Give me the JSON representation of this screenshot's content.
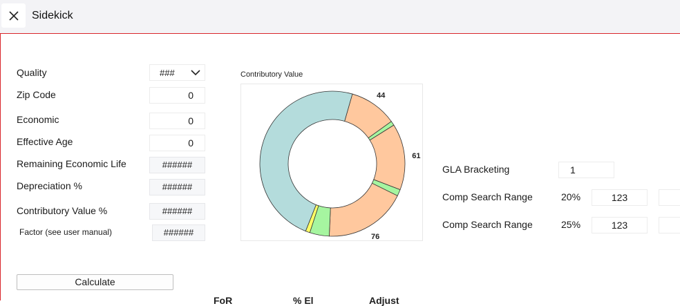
{
  "app": {
    "title": "Sidekick"
  },
  "form": {
    "quality": {
      "label": "Quality",
      "value": "###"
    },
    "zip_code": {
      "label": "Zip Code",
      "value": "0"
    },
    "economic": {
      "label": "Economic",
      "value": "0"
    },
    "effective_age": {
      "label": "Effective Age",
      "value": "0"
    },
    "remaining_life": {
      "label": "Remaining Economic Life",
      "value": "######"
    },
    "depreciation": {
      "label": "Depreciation %",
      "value": "######"
    },
    "contributory_value_pct": {
      "label": "Contributory Value %",
      "value": "######"
    },
    "factor": {
      "label": "Factor (see user manual)",
      "value": "######"
    },
    "calculate_label": "Calculate"
  },
  "chart_data": {
    "type": "pie",
    "title": "Contributory Value",
    "donut": true,
    "slices": [
      {
        "value": 44,
        "color": "#ffc89e",
        "label": "44"
      },
      {
        "value": 4,
        "color": "#a6f5a0",
        "label": ""
      },
      {
        "value": 61,
        "color": "#ffc89e",
        "label": "61"
      },
      {
        "value": 6,
        "color": "#a6f5a0",
        "label": ""
      },
      {
        "value": 76,
        "color": "#ffc89e",
        "label": "76"
      },
      {
        "value": 18,
        "color": "#a6f5a0",
        "label": "18"
      },
      {
        "value": 4,
        "color": "#ffff66",
        "label": "4"
      },
      {
        "value": 200,
        "color": "#b4dcdc",
        "label": ""
      }
    ]
  },
  "gla": {
    "label": "GLA Bracketing",
    "value": "1"
  },
  "comp_ranges": [
    {
      "label": "Comp Search Range",
      "pct": "20%",
      "value": "123"
    },
    {
      "label": "Comp Search Range",
      "pct": "25%",
      "value": "123"
    }
  ],
  "table_headers": [
    "FoR",
    "% El",
    "Adjust"
  ]
}
